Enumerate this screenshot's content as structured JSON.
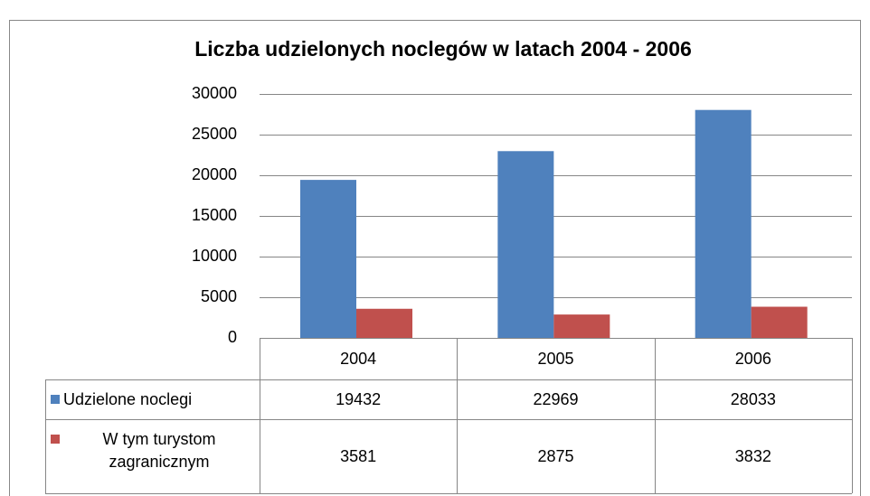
{
  "chart_data": {
    "type": "bar",
    "title": "Liczba udzielonych noclegów w latach 2004 - 2006",
    "categories": [
      "2004",
      "2005",
      "2006"
    ],
    "series": [
      {
        "name": "Udzielone noclegi",
        "color": "#4f81bd",
        "values": [
          19432,
          22969,
          28033
        ]
      },
      {
        "name": "W tym turystom zagranicznym",
        "color": "#c0504d",
        "values": [
          3581,
          2875,
          3832
        ]
      }
    ],
    "ylim": [
      0,
      30000
    ],
    "yticks": [
      0,
      5000,
      10000,
      15000,
      20000,
      25000,
      30000
    ],
    "grid": true
  }
}
